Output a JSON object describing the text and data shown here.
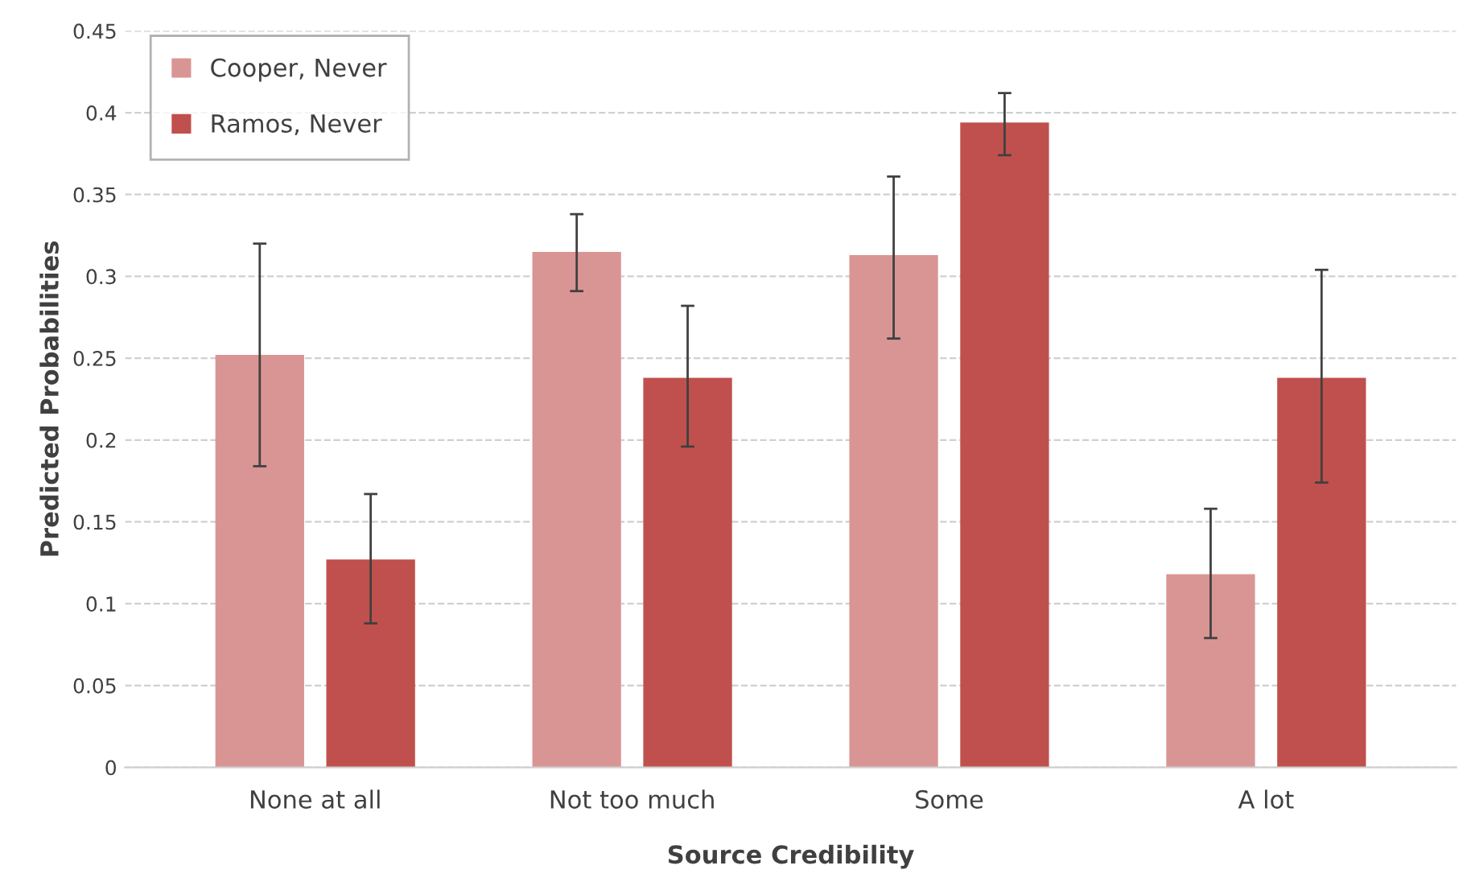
{
  "chart_data": {
    "type": "bar",
    "xlabel": "Source Credibility",
    "ylabel": "Predicted Probabilities",
    "categories": [
      "None at all",
      "Not too much",
      "Some",
      "A lot"
    ],
    "series": [
      {
        "name": "Cooper, Never",
        "color": "#d99594",
        "values": [
          0.252,
          0.315,
          0.313,
          0.118
        ],
        "errors": [
          [
            0.184,
            0.32
          ],
          [
            0.291,
            0.338
          ],
          [
            0.262,
            0.361
          ],
          [
            0.079,
            0.158
          ]
        ]
      },
      {
        "name": "Ramos, Never",
        "color": "#c0504d",
        "values": [
          0.127,
          0.238,
          0.394,
          0.238
        ],
        "errors": [
          [
            0.088,
            0.167
          ],
          [
            0.196,
            0.282
          ],
          [
            0.374,
            0.412
          ],
          [
            0.174,
            0.304
          ]
        ]
      }
    ],
    "ylim": [
      0,
      0.45
    ],
    "yticks": [
      0,
      0.05,
      0.1,
      0.15,
      0.2,
      0.25,
      0.3,
      0.35,
      0.4,
      0.45
    ],
    "grid": "y",
    "legend": "top left"
  }
}
